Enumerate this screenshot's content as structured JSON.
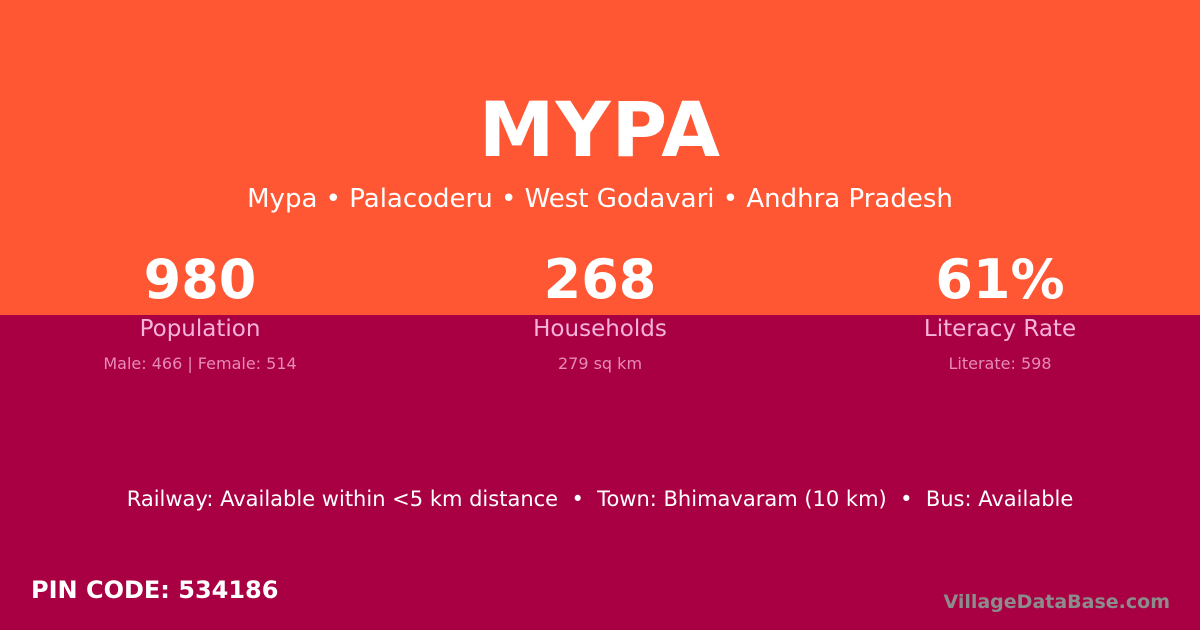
{
  "colors": {
    "top_background": "#FF5733",
    "bottom_background": "#A80042",
    "label": "#F6B3DC"
  },
  "village": {
    "name": "MYPA",
    "breadcrumb": "Mypa • Palacoderu • West Godavari • Andhra Pradesh"
  },
  "stats": [
    {
      "value": "980",
      "label": "Population",
      "detail": "Male: 466 | Female: 514"
    },
    {
      "value": "268",
      "label": "Households",
      "detail": "279 sq km"
    },
    {
      "value": "61%",
      "label": "Literacy Rate",
      "detail": "Literate: 598"
    }
  ],
  "transport": "Railway: Available within <5 km distance  •  Town: Bhimavaram (10 km)  •  Bus: Available",
  "pin_code": "PIN CODE: 534186",
  "brand": "VillageDataBase.com"
}
